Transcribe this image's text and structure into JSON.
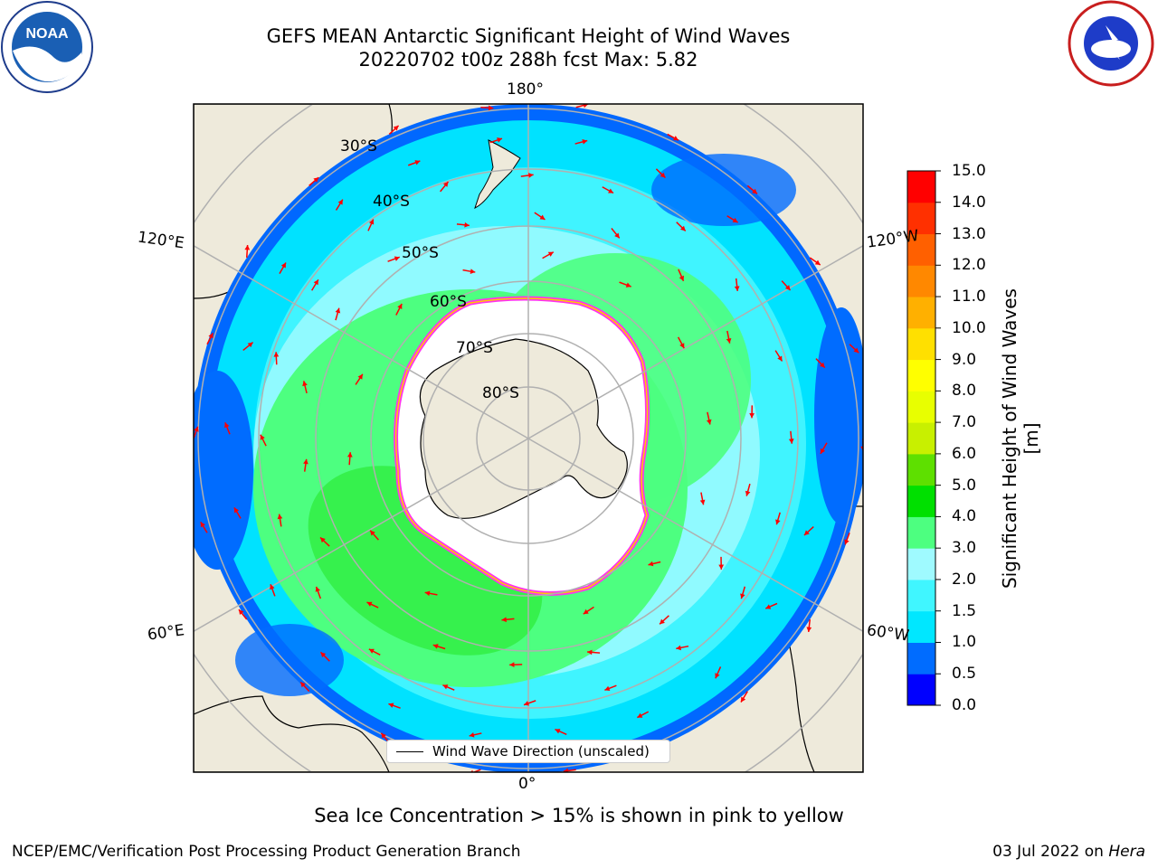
{
  "title": {
    "line1": "GEFS MEAN Antarctic Significant Height of Wind Waves",
    "line2": "20220702 t00z 288h fcst   Max: 5.82"
  },
  "logos": {
    "left": "NOAA",
    "right": "NATIONAL WEATHER SERVICE"
  },
  "map": {
    "longitude_labels": {
      "top": "180°",
      "bottom": "0°",
      "upper_left": "120°E",
      "lower_left": "60°E",
      "upper_right": "120°W",
      "lower_right": "60°W"
    },
    "latitude_labels": [
      "30°S",
      "40°S",
      "50°S",
      "60°S",
      "70°S",
      "80°S"
    ],
    "legend_label": "Wind Wave Direction (unscaled)",
    "colors": {
      "land": "#eeeadb",
      "ice_edge": "#ff33ee",
      "arrow": "#ff0000",
      "grid": "#b0b0b0"
    }
  },
  "colorbar": {
    "title": "Significant Height of Wind Waves [m]",
    "ticks": [
      "0.0",
      "0.5",
      "1.0",
      "1.5",
      "2.0",
      "3.0",
      "4.0",
      "5.0",
      "6.0",
      "7.0",
      "8.0",
      "9.0",
      "10.0",
      "11.0",
      "12.0",
      "13.0",
      "14.0",
      "15.0"
    ],
    "colors": [
      "#0000ff",
      "#006cff",
      "#00e7ff",
      "#40f6ff",
      "#9ffaff",
      "#4dff80",
      "#00e000",
      "#5ee000",
      "#c8f000",
      "#e8ff00",
      "#ffff00",
      "#ffe000",
      "#ffb000",
      "#ff8800",
      "#ff6000",
      "#ff3000",
      "#ff0000"
    ]
  },
  "note": "Sea Ice Concentration > 15% is shown in pink to yellow",
  "footer": {
    "left": "NCEP/EMC/Verification Post Processing Product Generation Branch",
    "right_date": "03 Jul 2022 on ",
    "right_host": "Hera"
  }
}
